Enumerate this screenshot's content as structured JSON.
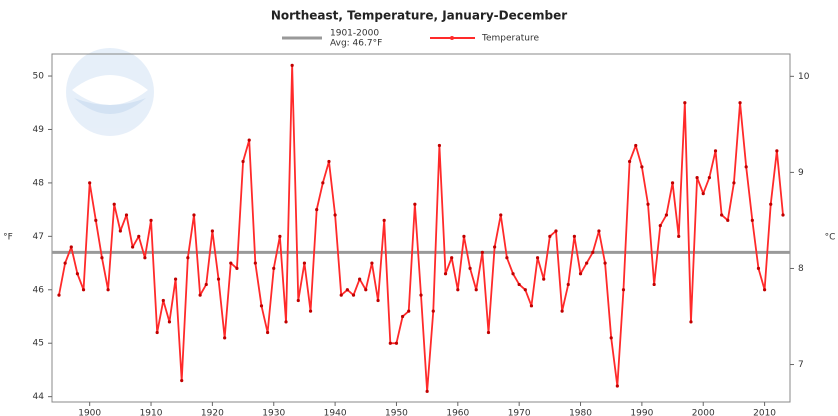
{
  "chart_data": {
    "type": "line",
    "title": "Northeast, Temperature, January-December",
    "ylabel": "°F",
    "y2label": "°C",
    "xlim": [
      1895,
      2013
    ],
    "xticks": [
      1900,
      1910,
      1920,
      1930,
      1940,
      1950,
      1960,
      1970,
      1980,
      1990,
      2000,
      2010
    ],
    "ylim": [
      43.9,
      50.3
    ],
    "yticks": [
      44,
      45,
      46,
      47,
      48,
      49,
      50
    ],
    "y2lim": [
      6.61,
      10.17
    ],
    "y2ticks": [
      7,
      8,
      9,
      10
    ],
    "reference_line": {
      "name": [
        "1901-2000",
        "Avg: 46.7°F"
      ],
      "value": 46.7,
      "color": "#999999"
    },
    "x": [
      1895,
      1896,
      1897,
      1898,
      1899,
      1900,
      1901,
      1902,
      1903,
      1904,
      1905,
      1906,
      1907,
      1908,
      1909,
      1910,
      1911,
      1912,
      1913,
      1914,
      1915,
      1916,
      1917,
      1918,
      1919,
      1920,
      1921,
      1922,
      1923,
      1924,
      1925,
      1926,
      1927,
      1928,
      1929,
      1930,
      1931,
      1932,
      1933,
      1934,
      1935,
      1936,
      1937,
      1938,
      1939,
      1940,
      1941,
      1942,
      1943,
      1944,
      1945,
      1946,
      1947,
      1948,
      1949,
      1950,
      1951,
      1952,
      1953,
      1954,
      1955,
      1956,
      1957,
      1958,
      1959,
      1960,
      1961,
      1962,
      1963,
      1964,
      1965,
      1966,
      1967,
      1968,
      1969,
      1970,
      1971,
      1972,
      1973,
      1974,
      1975,
      1976,
      1977,
      1978,
      1979,
      1980,
      1981,
      1982,
      1983,
      1984,
      1985,
      1986,
      1987,
      1988,
      1989,
      1990,
      1991,
      1992,
      1993,
      1994,
      1995,
      1996,
      1997,
      1998,
      1999,
      2000,
      2001,
      2002,
      2003,
      2004,
      2005,
      2006,
      2007,
      2008,
      2009,
      2010,
      2011,
      2012,
      2013
    ],
    "series": [
      {
        "name": "Temperature",
        "color": "#ff2a2a",
        "values": [
          45.9,
          46.5,
          46.8,
          46.3,
          46.0,
          48.0,
          47.3,
          46.6,
          46.0,
          47.6,
          47.1,
          47.4,
          46.8,
          47.0,
          46.6,
          47.3,
          45.2,
          45.8,
          45.4,
          46.2,
          44.3,
          46.6,
          47.4,
          45.9,
          46.1,
          47.1,
          46.2,
          45.1,
          46.5,
          46.4,
          48.4,
          48.8,
          46.5,
          45.7,
          45.2,
          46.4,
          47.0,
          45.4,
          50.2,
          45.8,
          46.5,
          45.6,
          47.5,
          48.0,
          48.4,
          47.4,
          45.9,
          46.0,
          45.9,
          46.2,
          46.0,
          46.5,
          45.8,
          47.3,
          45.0,
          45.0,
          45.5,
          45.6,
          47.6,
          45.9,
          44.1,
          45.6,
          48.7,
          46.3,
          46.6,
          46.0,
          47.0,
          46.4,
          46.0,
          46.7,
          45.2,
          46.8,
          47.4,
          46.6,
          46.3,
          46.1,
          46.0,
          45.7,
          46.6,
          46.2,
          47.0,
          47.1,
          45.6,
          46.1,
          47.0,
          46.3,
          46.5,
          46.7,
          47.1,
          46.5,
          45.1,
          44.2,
          46.0,
          48.4,
          48.7,
          48.3,
          47.6,
          46.1,
          47.2,
          47.4,
          48.0,
          47.0,
          49.5,
          45.4,
          48.1,
          47.8,
          48.1,
          48.6,
          47.4,
          47.3,
          48.0,
          49.5,
          48.3,
          47.3,
          46.4,
          46.0,
          47.6,
          48.6,
          47.4
        ]
      }
    ]
  }
}
